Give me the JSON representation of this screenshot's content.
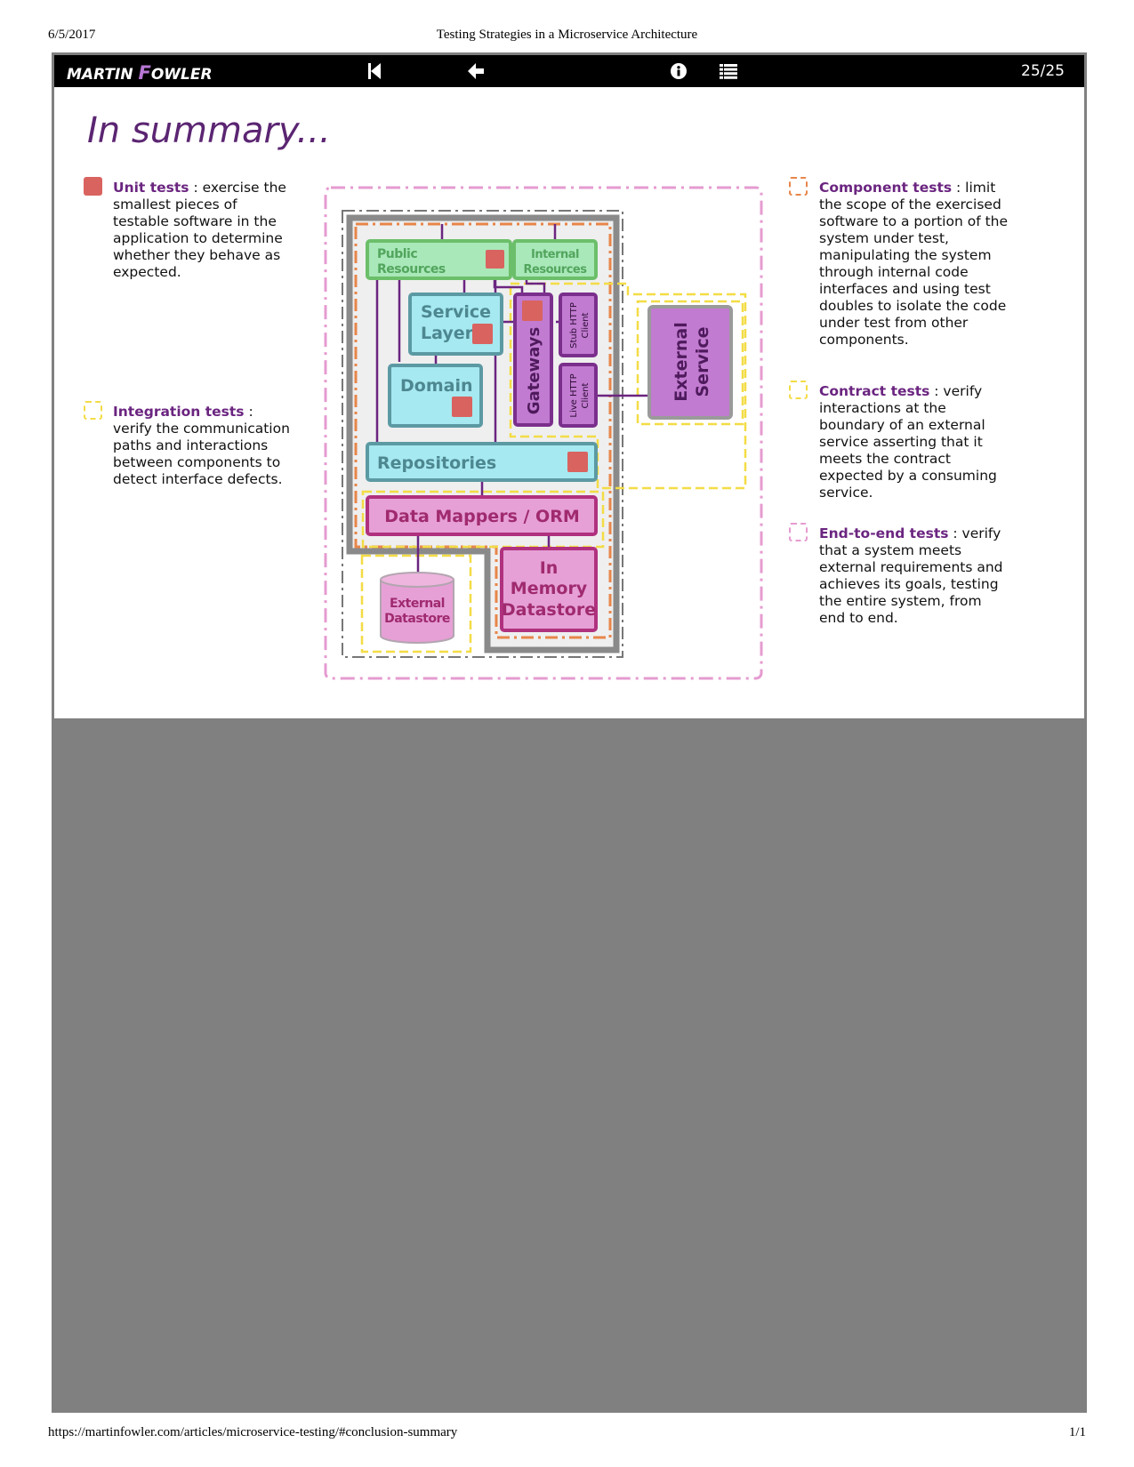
{
  "print_header": {
    "date": "6/5/2017",
    "title": "Testing Strategies in a Microservice Architecture"
  },
  "print_footer": {
    "url": "https://martinfowler.com/articles/microservice-testing/#conclusion-summary",
    "pages": "1/1"
  },
  "nav": {
    "logo_part1": "MARTIN ",
    "logo_f": "F",
    "logo_part2": "OWLER",
    "counter": "25/25",
    "icons": [
      "skip-back-icon",
      "arrow-left-icon",
      "info-icon",
      "list-icon"
    ]
  },
  "slide": {
    "title": "In summary...",
    "legend": {
      "unit": {
        "term": "Unit tests",
        "text": " : exercise the smallest pieces of testable software in the application to determine whether they behave as expected.",
        "color": "#d9635f"
      },
      "integration": {
        "term": "Integration tests",
        "text": " : verify the communication paths and interactions between components to detect interface defects.",
        "color": "#f3dc45"
      },
      "component": {
        "term": "Component tests",
        "text": " : limit the scope of the exercised software to a portion of the system under test, manipulating the system through internal code interfaces and using test doubles to isolate the code under test from other components.",
        "color": "#e7864a"
      },
      "contract": {
        "term": "Contract tests",
        "text": " : verify interactions at the boundary of an external service asserting that it meets the contract expected by a consuming service.",
        "color": "#f3dc45"
      },
      "e2e": {
        "term": "End-to-end tests",
        "text": " : verify that a system meets external requirements and achieves its goals, testing the entire system, from end to end.",
        "color": "#e59bd0"
      }
    }
  },
  "diagram": {
    "public_resources": [
      "Public",
      "Resources"
    ],
    "internal_resources": [
      "Internal",
      "Resources"
    ],
    "service_layer": [
      "Service",
      "Layer"
    ],
    "domain": "Domain",
    "gateways": "Gateways",
    "stub_http_client": [
      "Stub HTTP",
      "Client"
    ],
    "live_http_client": [
      "Live HTTP",
      "Client"
    ],
    "external_service": [
      "External",
      "Service"
    ],
    "repositories": "Repositories",
    "data_mappers": "Data Mappers / ORM",
    "external_datastore": [
      "External",
      "Datastore"
    ],
    "in_memory_datastore": [
      "In",
      "Memory",
      "Datastore"
    ],
    "colors": {
      "green": "#a9e8b9",
      "green_border": "#6cbf6a",
      "cyan": "#a6e9f0",
      "cyan_border": "#5c9aa3",
      "purple": "#c17bd0",
      "purple_border": "#7b2f8c",
      "pink": "#e6a0d6",
      "pink_border": "#b0317e",
      "unit_square": "#d9635f"
    }
  }
}
